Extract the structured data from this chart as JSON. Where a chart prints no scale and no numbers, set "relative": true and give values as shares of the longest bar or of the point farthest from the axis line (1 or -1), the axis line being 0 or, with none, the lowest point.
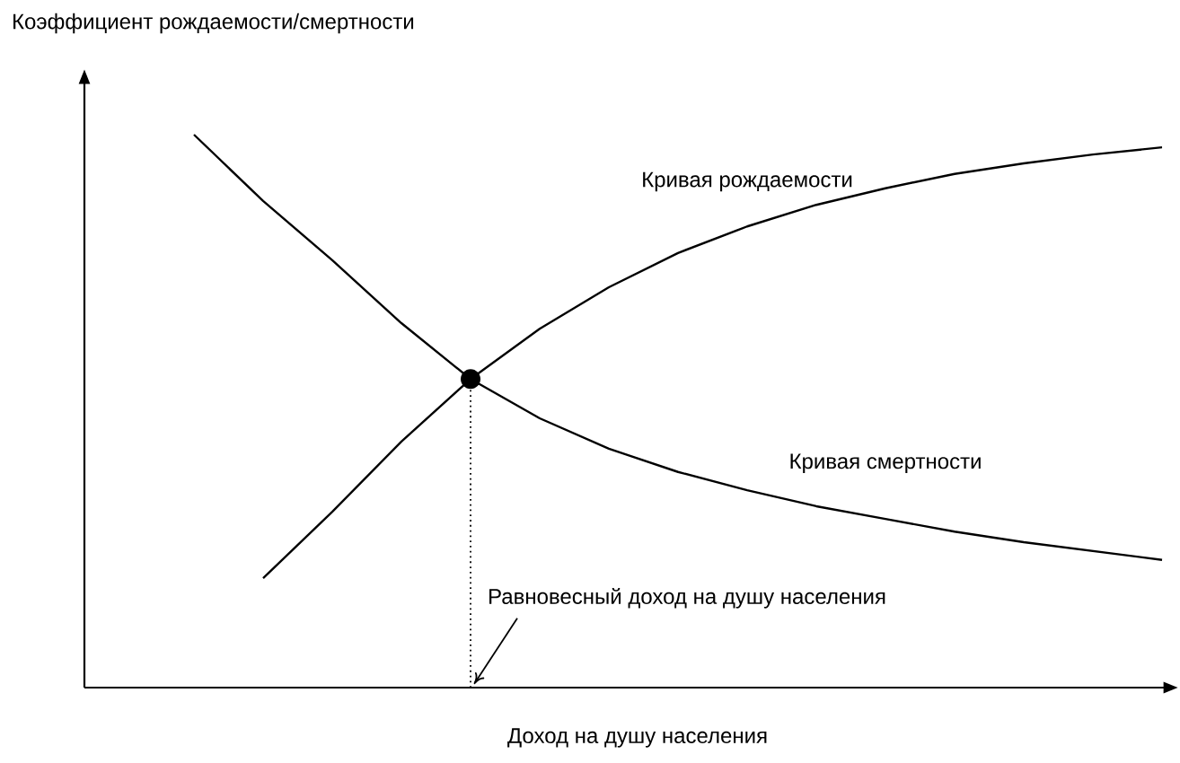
{
  "chart_data": {
    "type": "line",
    "relative": true,
    "xlabel": "Доход на душу населения",
    "ylabel": "Коэффициент рождаемости/смертности",
    "categories": [
      null,
      null,
      null,
      null,
      null,
      null,
      null,
      null,
      null,
      null,
      null,
      null,
      null,
      null,
      null
    ],
    "series": [
      {
        "name": "Кривая рождаемости",
        "color": "#000000",
        "values": [
          null,
          0.198,
          0.318,
          0.445,
          0.558,
          0.649,
          0.724,
          0.786,
          0.834,
          0.873,
          0.903,
          0.929,
          0.948,
          0.964,
          0.977
        ]
      },
      {
        "name": "Кривая смертности",
        "color": "#000000",
        "values": [
          1,
          0.88,
          0.773,
          0.659,
          0.558,
          0.487,
          0.432,
          0.39,
          0.357,
          0.328,
          0.305,
          0.282,
          0.263,
          0.247,
          0.231
        ]
      }
    ],
    "annotations": [
      "Равновесный доход на душу населения"
    ]
  }
}
